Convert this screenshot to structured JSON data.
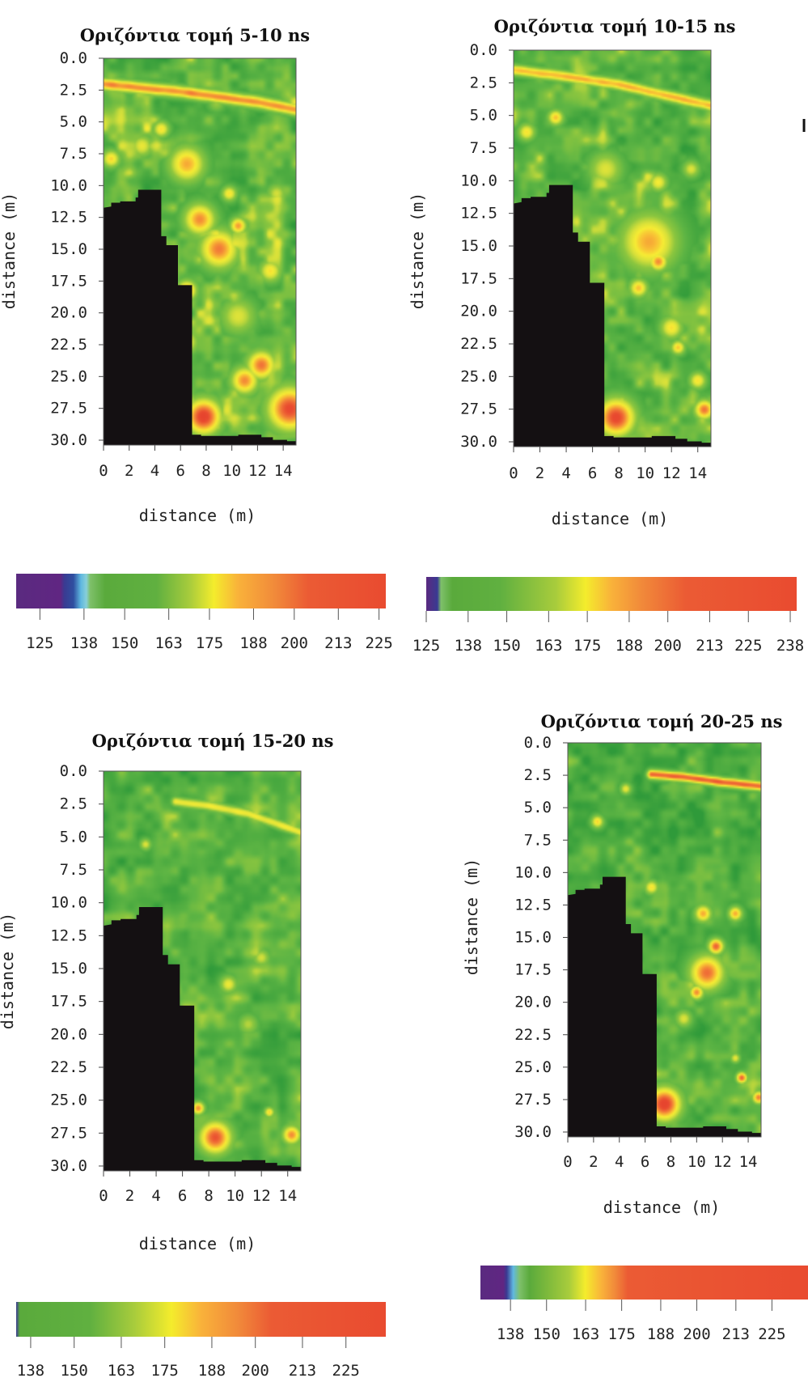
{
  "figure": {
    "edge_glyph": "l"
  },
  "chart_data": [
    {
      "type": "heatmap",
      "title": "Οριζόντια τομή 5-10  ns",
      "xlabel": "distance (m)",
      "ylabel": "distance (m)",
      "xlim": [
        0,
        15
      ],
      "ylim": [
        0,
        30
      ],
      "y_ticks": [
        "0.0",
        "2.5",
        "5.0",
        "7.5",
        "10.0",
        "12.5",
        "15.0",
        "17.5",
        "20.0",
        "22.5",
        "25.0",
        "27.5",
        "30.0"
      ],
      "x_ticks": [
        "0",
        "2",
        "4",
        "6",
        "8",
        "10",
        "12",
        "14"
      ],
      "colorbar_ticks": [
        "125",
        "138",
        "150",
        "163",
        "175",
        "188",
        "200",
        "213",
        "225"
      ],
      "colorbar_range": [
        118,
        227
      ]
    },
    {
      "type": "heatmap",
      "title": "Οριζόντια τομή 10-15 ns",
      "xlabel": "distance (m)",
      "ylabel": "distance (m)",
      "xlim": [
        0,
        15
      ],
      "ylim": [
        0,
        30
      ],
      "y_ticks": [
        "0.0",
        "2.5",
        "5.0",
        "7.5",
        "10.0",
        "12.5",
        "15.0",
        "17.5",
        "20.0",
        "22.5",
        "25.0",
        "27.5",
        "30.0"
      ],
      "x_ticks": [
        "0",
        "2",
        "4",
        "6",
        "8",
        "10",
        "12",
        "14"
      ],
      "colorbar_ticks": [
        "125",
        "138",
        "150",
        "163",
        "175",
        "188",
        "200",
        "213",
        "225",
        "238"
      ],
      "colorbar_range": [
        125,
        240
      ]
    },
    {
      "type": "heatmap",
      "title": "Οριζόντια τομή 15-20 ns",
      "xlabel": "distance (m)",
      "ylabel": "distance (m)",
      "xlim": [
        0,
        15
      ],
      "ylim": [
        0,
        30
      ],
      "y_ticks": [
        "0.0",
        "2.5",
        "5.0",
        "7.5",
        "10.0",
        "12.5",
        "15.0",
        "17.5",
        "20.0",
        "22.5",
        "25.0",
        "27.5",
        "30.0"
      ],
      "x_ticks": [
        "0",
        "2",
        "4",
        "6",
        "8",
        "10",
        "12",
        "14"
      ],
      "colorbar_ticks": [
        "138",
        "150",
        "163",
        "175",
        "188",
        "200",
        "213",
        "225"
      ],
      "colorbar_range": [
        134,
        236
      ]
    },
    {
      "type": "heatmap",
      "title": "Οριζόντια τομή 20-25 ns",
      "xlabel": "distance (m)",
      "ylabel": "distance (m)",
      "xlim": [
        0,
        15
      ],
      "ylim": [
        0,
        30
      ],
      "y_ticks": [
        "0.0",
        "2.5",
        "5.0",
        "7.5",
        "10.0",
        "12.5",
        "15.0",
        "17.5",
        "20.0",
        "22.5",
        "25.0",
        "27.5",
        "30.0"
      ],
      "x_ticks": [
        "0",
        "2",
        "4",
        "6",
        "8",
        "10",
        "12",
        "14"
      ],
      "colorbar_ticks": [
        "138",
        "150",
        "163",
        "175",
        "188",
        "200",
        "213",
        "225"
      ],
      "colorbar_range": [
        128,
        237
      ]
    }
  ],
  "no_data_region_m": [
    [
      0,
      11.6
    ],
    [
      0.6,
      11.5
    ],
    [
      0.6,
      11.2
    ],
    [
      1.3,
      11.2
    ],
    [
      1.3,
      11.1
    ],
    [
      2.5,
      11.1
    ],
    [
      2.5,
      10.8
    ],
    [
      2.7,
      10.8
    ],
    [
      2.7,
      10.2
    ],
    [
      4.5,
      10.2
    ],
    [
      4.5,
      13.8
    ],
    [
      4.9,
      13.8
    ],
    [
      4.9,
      14.5
    ],
    [
      5.8,
      14.5
    ],
    [
      5.8,
      17.6
    ],
    [
      6.9,
      17.6
    ],
    [
      6.9,
      29.2
    ],
    [
      7.6,
      29.2
    ],
    [
      7.6,
      29.3
    ],
    [
      10.5,
      29.3
    ],
    [
      10.5,
      29.2
    ],
    [
      12.3,
      29.2
    ],
    [
      12.3,
      29.4
    ],
    [
      13.2,
      29.4
    ],
    [
      13.2,
      29.6
    ],
    [
      14.3,
      29.6
    ],
    [
      14.3,
      29.7
    ],
    [
      15,
      29.7
    ],
    [
      15,
      30.2
    ],
    [
      0,
      30.2
    ]
  ],
  "colors": {
    "no_data": "#141012",
    "frame": "#555555",
    "field_base": "#5eb544"
  },
  "colorbar_gradients": [
    [
      [
        "#5a2a80",
        0
      ],
      [
        "#602682",
        0.12
      ],
      [
        "#3a3a92",
        0.13
      ],
      [
        "#2f4fa0",
        0.155
      ],
      [
        "#5fb8e0",
        0.175
      ],
      [
        "#88cfd8",
        0.19
      ],
      [
        "#7ec06a",
        0.2
      ],
      [
        "#5aaa3c",
        0.24
      ],
      [
        "#60b040",
        0.38
      ],
      [
        "#a8cc3c",
        0.47
      ],
      [
        "#f4ec2c",
        0.535
      ],
      [
        "#f9b23a",
        0.6
      ],
      [
        "#f18a3a",
        0.7
      ],
      [
        "#eb5b34",
        0.79
      ],
      [
        "#e94b30",
        1
      ]
    ],
    [
      [
        "#5a2a80",
        0
      ],
      [
        "#3a3a92",
        0.03
      ],
      [
        "#7ec06a",
        0.04
      ],
      [
        "#5aaa3c",
        0.07
      ],
      [
        "#60b040",
        0.2
      ],
      [
        "#a8cc3c",
        0.35
      ],
      [
        "#f4ec2c",
        0.43
      ],
      [
        "#f9b23a",
        0.5
      ],
      [
        "#f18a3a",
        0.58
      ],
      [
        "#eb5b34",
        0.7
      ],
      [
        "#e94b30",
        1
      ]
    ],
    [
      [
        "#3a3a92",
        0
      ],
      [
        "#5aaa3c",
        0.01
      ],
      [
        "#60b040",
        0.2
      ],
      [
        "#a8cc3c",
        0.32
      ],
      [
        "#f4ec2c",
        0.42
      ],
      [
        "#f9b23a",
        0.5
      ],
      [
        "#f18a3a",
        0.6
      ],
      [
        "#eb5b34",
        0.69
      ],
      [
        "#e94b30",
        1
      ]
    ],
    [
      [
        "#5a2a80",
        0
      ],
      [
        "#602682",
        0.07
      ],
      [
        "#3a3a92",
        0.08
      ],
      [
        "#5fb8e0",
        0.1
      ],
      [
        "#7ec06a",
        0.12
      ],
      [
        "#5aaa3c",
        0.15
      ],
      [
        "#a8cc3c",
        0.27
      ],
      [
        "#f4ec2c",
        0.32
      ],
      [
        "#f9b23a",
        0.37
      ],
      [
        "#f18a3a",
        0.41
      ],
      [
        "#eb5b34",
        0.45
      ],
      [
        "#e94b30",
        1
      ]
    ]
  ],
  "features": [
    {
      "line": [
        [
          0,
          2
        ],
        [
          3,
          2.3
        ],
        [
          6,
          2.6
        ],
        [
          9,
          3
        ],
        [
          12,
          3.4
        ],
        [
          15,
          4
        ]
      ],
      "line_level": 0.82,
      "line_width_m": 0.8,
      "blobs": [
        [
          6.5,
          8.2,
          2.6,
          0.78
        ],
        [
          3,
          6.8,
          1.6,
          0.65
        ],
        [
          7.5,
          12.5,
          2.3,
          0.82
        ],
        [
          9,
          14.8,
          2.8,
          0.84
        ],
        [
          12.3,
          23.8,
          2.1,
          0.85
        ],
        [
          14.5,
          27.2,
          3.2,
          0.92
        ],
        [
          7.8,
          27.8,
          2.6,
          0.95
        ],
        [
          11,
          25,
          2,
          0.82
        ],
        [
          13,
          16.5,
          1.6,
          0.7
        ],
        [
          6.5,
          18,
          1.5,
          0.8
        ],
        [
          10.5,
          13,
          1.2,
          0.8
        ],
        [
          4.5,
          5.5,
          1.2,
          0.7
        ],
        [
          10.5,
          20,
          2.6,
          0.62
        ],
        [
          8.8,
          3.5,
          1.2,
          0.5
        ],
        [
          0.6,
          7.8,
          1.3,
          0.72
        ],
        [
          6.5,
          22,
          1.8,
          0.65
        ],
        [
          9.8,
          10.5,
          1.1,
          0.7
        ],
        [
          13.5,
          10.5,
          1.4,
          0.6
        ]
      ],
      "seed": 11,
      "base": 0.32,
      "noise": 0.42
    },
    {
      "line": [
        [
          0,
          1.5
        ],
        [
          4,
          2
        ],
        [
          8,
          2.6
        ],
        [
          11,
          3.3
        ],
        [
          15,
          4.2
        ]
      ],
      "line_level": 0.76,
      "line_width_m": 0.7,
      "blobs": [
        [
          10.3,
          14.5,
          4,
          0.78
        ],
        [
          11,
          16,
          1.3,
          0.82
        ],
        [
          9.5,
          18,
          1.3,
          0.75
        ],
        [
          12,
          21,
          1.6,
          0.7
        ],
        [
          7.8,
          27.8,
          2.7,
          0.93
        ],
        [
          14.5,
          27.2,
          1.4,
          0.85
        ],
        [
          3.2,
          5.1,
          1.1,
          0.75
        ],
        [
          1,
          6.2,
          1.2,
          0.7
        ],
        [
          7,
          9,
          2.4,
          0.62
        ],
        [
          11,
          10,
          1.3,
          0.68
        ],
        [
          13.5,
          9,
          1.2,
          0.62
        ],
        [
          12.5,
          22.5,
          1,
          0.74
        ],
        [
          14,
          25,
          1.2,
          0.7
        ]
      ],
      "seed": 23,
      "base": 0.3,
      "noise": 0.38
    },
    {
      "line": [
        [
          5.5,
          2.3
        ],
        [
          8,
          2.6
        ],
        [
          11,
          3.2
        ],
        [
          15,
          4.6
        ]
      ],
      "line_level": 0.66,
      "line_width_m": 0.6,
      "blobs": [
        [
          8.5,
          27.5,
          2.3,
          0.9
        ],
        [
          7.2,
          25.3,
          0.9,
          0.82
        ],
        [
          14.3,
          27.3,
          1.3,
          0.82
        ],
        [
          9.5,
          16,
          1.2,
          0.66
        ],
        [
          12,
          14,
          1.2,
          0.6
        ],
        [
          3.2,
          5.5,
          0.8,
          0.62
        ],
        [
          12.6,
          25.6,
          0.7,
          0.72
        ],
        [
          11,
          19,
          1.4,
          0.55
        ]
      ],
      "seed": 37,
      "base": 0.28,
      "noise": 0.34
    },
    {
      "line": [
        [
          6.5,
          2.4
        ],
        [
          9,
          2.6
        ],
        [
          12,
          3
        ],
        [
          15,
          3.3
        ]
      ],
      "line_level": 0.88,
      "line_width_m": 0.6,
      "blobs": [
        [
          7.5,
          27.5,
          2.4,
          0.95
        ],
        [
          10.8,
          17.5,
          2.5,
          0.86
        ],
        [
          11.5,
          15.5,
          1.1,
          0.88
        ],
        [
          10,
          19,
          1,
          0.82
        ],
        [
          10.5,
          13,
          1.2,
          0.78
        ],
        [
          13,
          13,
          1,
          0.78
        ],
        [
          13.5,
          25.5,
          0.8,
          0.88
        ],
        [
          14.8,
          27,
          0.9,
          0.84
        ],
        [
          1,
          13,
          0.9,
          0.7
        ],
        [
          6.5,
          11,
          1,
          0.7
        ],
        [
          2.3,
          6,
          0.9,
          0.72
        ],
        [
          4.5,
          3.5,
          0.8,
          0.65
        ],
        [
          9,
          21,
          1.2,
          0.62
        ],
        [
          13,
          24,
          0.7,
          0.65
        ]
      ],
      "seed": 53,
      "base": 0.24,
      "noise": 0.36
    }
  ]
}
